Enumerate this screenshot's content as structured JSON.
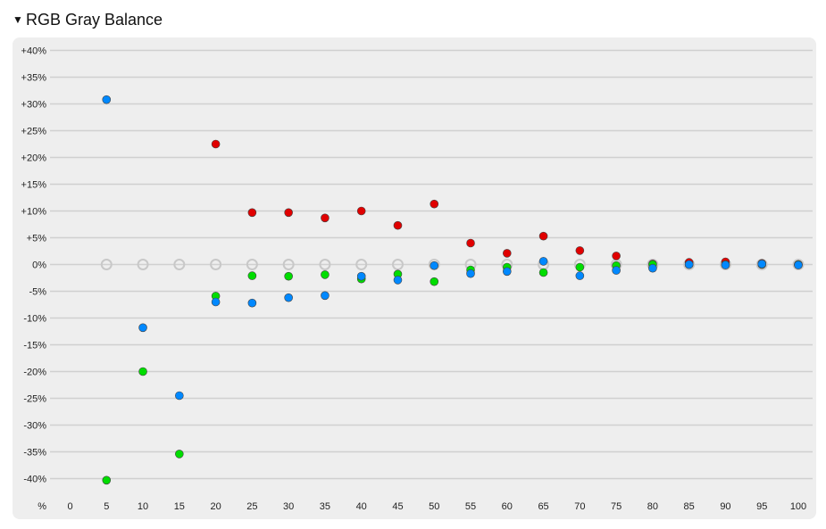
{
  "section": {
    "toggle_glyph": "▼",
    "title": "RGB Gray Balance"
  },
  "chart_data": {
    "type": "scatter",
    "x_unit_label": "%",
    "x_ticks": [
      "0",
      "5",
      "10",
      "15",
      "20",
      "25",
      "30",
      "35",
      "40",
      "45",
      "50",
      "55",
      "60",
      "65",
      "70",
      "75",
      "80",
      "85",
      "90",
      "95",
      "100"
    ],
    "y_ticks": [
      {
        "value": 40,
        "label": "+40%"
      },
      {
        "value": 35,
        "label": "+35%"
      },
      {
        "value": 30,
        "label": "+30%"
      },
      {
        "value": 25,
        "label": "+25%"
      },
      {
        "value": 20,
        "label": "+20%"
      },
      {
        "value": 15,
        "label": "+15%"
      },
      {
        "value": 10,
        "label": "+10%"
      },
      {
        "value": 5,
        "label": "+5%"
      },
      {
        "value": 0,
        "label": "0%"
      },
      {
        "value": -5,
        "label": "-5%"
      },
      {
        "value": -10,
        "label": "-10%"
      },
      {
        "value": -15,
        "label": "-15%"
      },
      {
        "value": -20,
        "label": "-20%"
      },
      {
        "value": -25,
        "label": "-25%"
      },
      {
        "value": -30,
        "label": "-30%"
      },
      {
        "value": -35,
        "label": "-35%"
      },
      {
        "value": -40,
        "label": "-40%"
      }
    ],
    "xlim": [
      0,
      100
    ],
    "ylim": [
      -40,
      40
    ],
    "grid": true,
    "series": [
      {
        "key": "reference",
        "color": "#c8c8c8",
        "hollow": true,
        "points": [
          [
            5,
            0
          ],
          [
            10,
            0
          ],
          [
            15,
            0
          ],
          [
            20,
            0
          ],
          [
            25,
            0
          ],
          [
            30,
            0
          ],
          [
            35,
            0
          ],
          [
            40,
            0
          ],
          [
            45,
            0
          ],
          [
            50,
            0
          ],
          [
            55,
            0
          ],
          [
            60,
            0
          ],
          [
            65,
            0
          ],
          [
            70,
            0
          ],
          [
            75,
            0
          ],
          [
            80,
            0
          ],
          [
            85,
            0
          ],
          [
            90,
            0
          ],
          [
            95,
            0
          ],
          [
            100,
            0
          ]
        ]
      },
      {
        "key": "red",
        "color": "#e00000",
        "hollow": false,
        "points": [
          [
            20,
            22.5
          ],
          [
            25,
            9.7
          ],
          [
            30,
            9.7
          ],
          [
            35,
            8.7
          ],
          [
            40,
            10.0
          ],
          [
            45,
            7.3
          ],
          [
            50,
            11.3
          ],
          [
            55,
            4.0
          ],
          [
            60,
            2.1
          ],
          [
            65,
            5.3
          ],
          [
            70,
            2.6
          ],
          [
            75,
            1.6
          ],
          [
            80,
            0.1
          ],
          [
            85,
            0.4
          ],
          [
            90,
            0.5
          ],
          [
            95,
            0.2
          ],
          [
            100,
            0.0
          ]
        ]
      },
      {
        "key": "green",
        "color": "#00dd00",
        "hollow": false,
        "points": [
          [
            5,
            -40.3
          ],
          [
            10,
            -20.0
          ],
          [
            15,
            -35.4
          ],
          [
            20,
            -5.9
          ],
          [
            25,
            -2.1
          ],
          [
            30,
            -2.2
          ],
          [
            35,
            -1.9
          ],
          [
            40,
            -2.7
          ],
          [
            45,
            -1.8
          ],
          [
            50,
            -3.2
          ],
          [
            55,
            -1.0
          ],
          [
            60,
            -0.5
          ],
          [
            65,
            -1.5
          ],
          [
            70,
            -0.5
          ],
          [
            75,
            -0.2
          ],
          [
            80,
            0.0
          ],
          [
            85,
            0.0
          ],
          [
            90,
            0.0
          ],
          [
            95,
            0.0
          ],
          [
            100,
            0.0
          ]
        ]
      },
      {
        "key": "blue",
        "color": "#0088ff",
        "hollow": false,
        "points": [
          [
            5,
            30.8
          ],
          [
            10,
            -11.8
          ],
          [
            15,
            -24.5
          ],
          [
            20,
            -7.0
          ],
          [
            25,
            -7.2
          ],
          [
            30,
            -6.2
          ],
          [
            35,
            -5.8
          ],
          [
            40,
            -2.2
          ],
          [
            45,
            -2.9
          ],
          [
            50,
            -0.2
          ],
          [
            55,
            -1.7
          ],
          [
            60,
            -1.3
          ],
          [
            65,
            0.6
          ],
          [
            70,
            -2.1
          ],
          [
            75,
            -1.1
          ],
          [
            80,
            -0.7
          ],
          [
            85,
            0.0
          ],
          [
            90,
            -0.1
          ],
          [
            95,
            0.1
          ],
          [
            100,
            -0.1
          ]
        ]
      }
    ]
  }
}
